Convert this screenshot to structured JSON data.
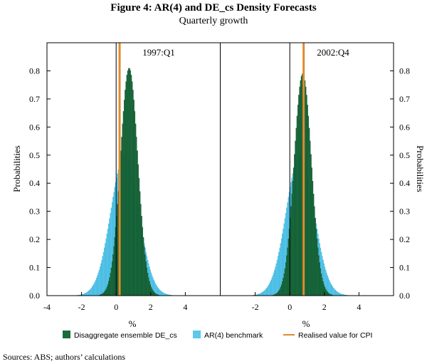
{
  "chart_data": {
    "type": "bar",
    "title": "Figure 4: AR(4) and DE_cs Density Forecasts",
    "subtitle": "Quarterly growth",
    "ylabel_left": "Probabilities",
    "ylabel_right": "Probabilities",
    "xlabel": "%",
    "ylim": [
      0,
      0.9
    ],
    "yticks": [
      "0.0",
      "0.1",
      "0.2",
      "0.3",
      "0.4",
      "0.5",
      "0.6",
      "0.7",
      "0.8"
    ],
    "panels": [
      {
        "label": "1997:Q1",
        "xlim": [
          -4,
          6
        ],
        "xticks": [
          "-4",
          "-2",
          "0",
          "2",
          "4"
        ],
        "xtick_values": [
          -4,
          -2,
          0,
          2,
          4
        ],
        "zero_line": 0,
        "realised_value": 0.2,
        "de_cs": {
          "mean": 0.75,
          "sd": 0.5,
          "peak": 0.81
        },
        "ar4": {
          "mean": 0.5,
          "sd": 0.8,
          "peak": 0.5
        }
      },
      {
        "label": "2002:Q4",
        "xlim": [
          -4,
          6
        ],
        "xticks": [
          "-2",
          "0",
          "2",
          "4"
        ],
        "xtick_values": [
          -2,
          0,
          2,
          4
        ],
        "zero_line": 0,
        "realised_value": 0.8,
        "de_cs": {
          "mean": 0.75,
          "sd": 0.5,
          "peak": 0.79
        },
        "ar4": {
          "mean": 0.6,
          "sd": 0.8,
          "peak": 0.5
        }
      }
    ],
    "legend": [
      {
        "label": "Disaggregate ensemble DE_cs",
        "kind": "box",
        "color": "#1a6b3c"
      },
      {
        "label": "AR(4) benchmark",
        "kind": "box",
        "color": "#5bc8ec"
      },
      {
        "label": "Realised value for CPI",
        "kind": "line",
        "color": "#e08a2c"
      }
    ]
  },
  "source_note": "Sources:   ABS; authors’ calculations",
  "colors": {
    "de_cs": "#1a6b3c",
    "de_cs_edge": "#0d4a28",
    "ar4": "#5bc8ec",
    "ar4_edge": "#2aa6d2",
    "realised": "#e08a2c"
  }
}
